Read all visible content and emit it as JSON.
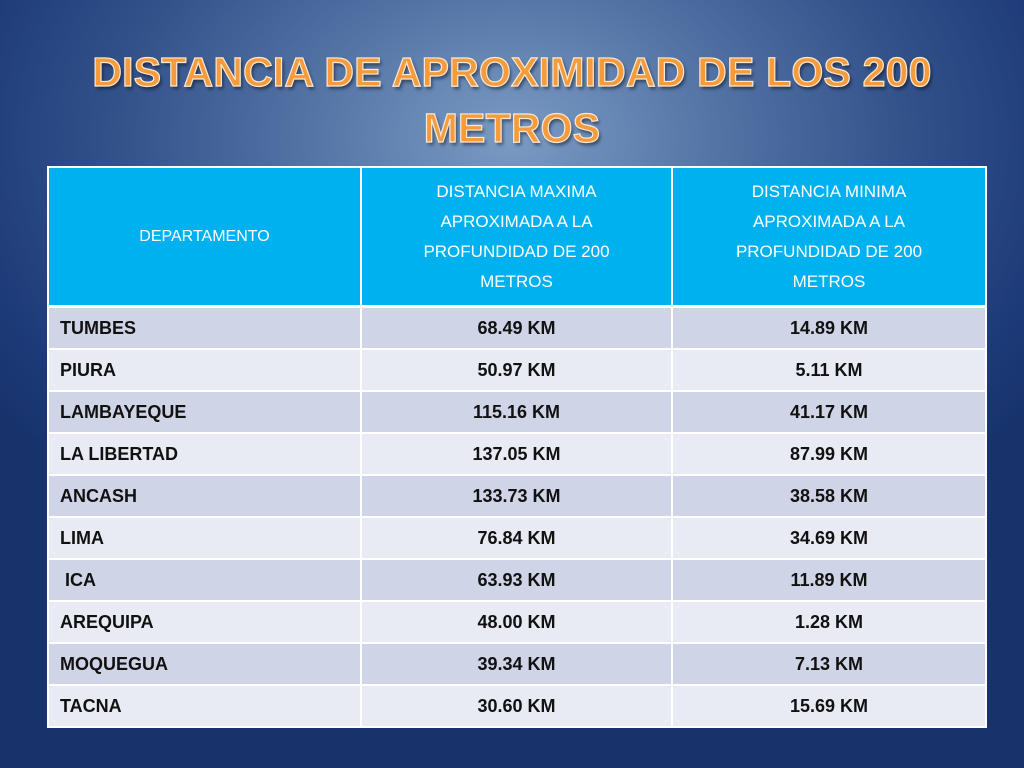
{
  "title": {
    "line1": "DISTANCIA DE APROXIMIDAD DE LOS 200",
    "line2": "METROS"
  },
  "table": {
    "headers": [
      "DEPARTAMENTO",
      "DISTANCIA  MAXIMA\nAPROXIMADA A  LA\nPROFUNDIDAD  DE 200\nMETROS",
      "DISTANCIA  MINIMA\nAPROXIMADA  A  LA\nPROFUNDIDAD DE 200\nMETROS"
    ],
    "rows": [
      [
        "TUMBES",
        "68.49 KM",
        "14.89 KM"
      ],
      [
        "PIURA",
        "50.97 KM",
        "5.11 KM"
      ],
      [
        "LAMBAYEQUE",
        "115.16 KM",
        "41.17 KM"
      ],
      [
        "LA LIBERTAD",
        "137.05 KM",
        "87.99 KM"
      ],
      [
        "ANCASH",
        "133.73 KM",
        "38.58 KM"
      ],
      [
        "LIMA",
        "76.84 KM",
        "34.69 KM"
      ],
      [
        " ICA",
        "63.93 KM",
        "11.89 KM"
      ],
      [
        "AREQUIPA",
        "48.00 KM",
        "1.28 KM"
      ],
      [
        "MOQUEGUA",
        "39.34 KM",
        "7.13 KM"
      ],
      [
        "TACNA",
        "30.60 KM",
        "15.69 KM"
      ]
    ]
  },
  "colors": {
    "title_text": "#f59b3b",
    "header_fill": "#00b1ef",
    "row_band_dark": "#cfd5e6",
    "row_band_light": "#e8ebf3",
    "background_center": "#7b9bc4",
    "background_edge": "#18336c"
  }
}
